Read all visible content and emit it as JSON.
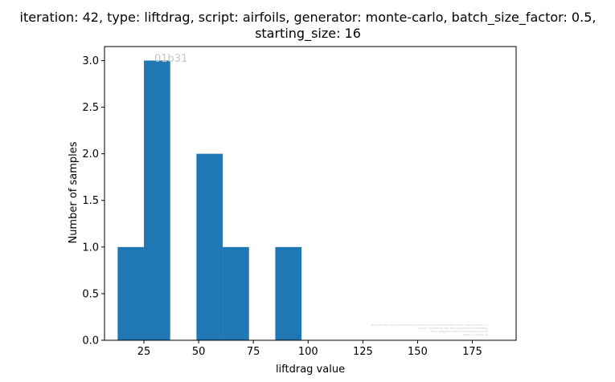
{
  "chart_data": {
    "type": "bar",
    "title_lines": [
      "iteration: 42, type: liftdrag, script: airfoils, generator: monte-carlo, batch_size_factor: 0.5,",
      "starting_size: 16"
    ],
    "xlabel": "liftdrag value",
    "ylabel": "Number of samples",
    "xlim": [
      7,
      195
    ],
    "ylim": [
      0,
      3.15
    ],
    "xticks": [
      25,
      50,
      75,
      100,
      125,
      150,
      175
    ],
    "yticks": [
      0.0,
      0.5,
      1.0,
      1.5,
      2.0,
      2.5,
      3.0
    ],
    "ytick_labels": [
      "0.0",
      "0.5",
      "1.0",
      "1.5",
      "2.0",
      "2.5",
      "3.0"
    ],
    "bin_edges": [
      13,
      25,
      37,
      49,
      61,
      73,
      85,
      97
    ],
    "values": [
      1,
      3,
      0,
      2,
      1,
      0,
      1
    ],
    "bar_color": "#1f77b4",
    "watermark": "01b31",
    "footnote_lines": [
      "By Sorell Olsen tpt 0.9756 director v-Sophomore .com and Kana Mai 0.9775 <dave vaughn3.tv>",
      "Commit: 2b51475e3c7f71 5b5e1a9b5e7b3fb 9cb5d7959e",
      "Repo: git@github.com:tiv/il-tpc/toml-nn-test.git",
      "Instance: ml-batc-16"
    ]
  }
}
